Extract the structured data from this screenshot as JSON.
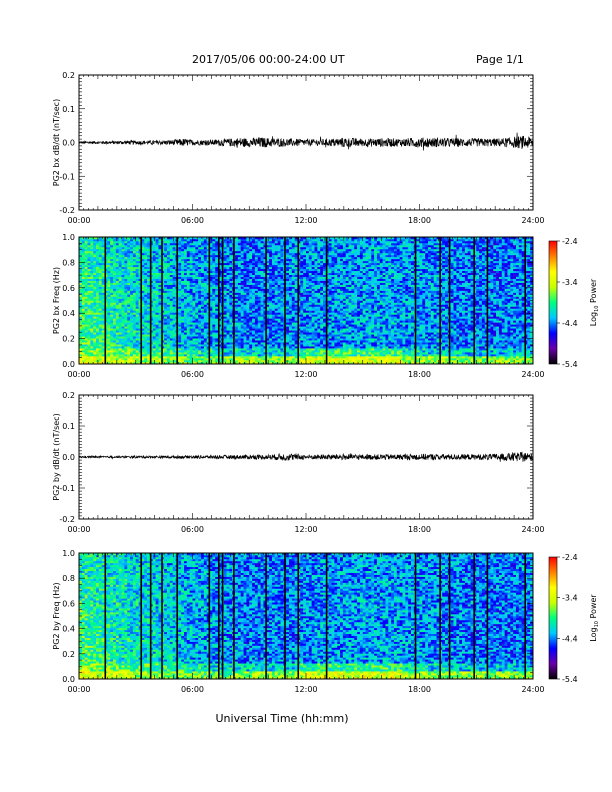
{
  "header": {
    "title": "2017/05/06  00:00-24:00 UT",
    "page": "Page 1/1"
  },
  "xlabel": "Universal Time (hh:mm)",
  "colors": {
    "trace": "#000000",
    "colormap": [
      "#000000",
      "#6a00a8",
      "#0000ff",
      "#00c8ff",
      "#00ff7f",
      "#c8ff00",
      "#ffff00",
      "#ff8000",
      "#ff0000"
    ]
  },
  "chart_data": [
    {
      "type": "line",
      "ylabel": "PG2 bx dB/dt (nT/sec)",
      "xlim": [
        0,
        24
      ],
      "ylim": [
        -0.2,
        0.2
      ],
      "xticks": [
        "00:00",
        "06:00",
        "12:00",
        "18:00",
        "24:00"
      ],
      "yticks": [
        "0.2",
        "0.1",
        "0.0",
        "-0.1",
        "-0.2"
      ],
      "yticklabels_shown": [
        "0.2",
        "0.1",
        "0.0",
        "-0.1",
        "-0.2"
      ],
      "envelope": [
        [
          0,
          0.004
        ],
        [
          1,
          0.004
        ],
        [
          2,
          0.005
        ],
        [
          3,
          0.006
        ],
        [
          4,
          0.006
        ],
        [
          5,
          0.008
        ],
        [
          5.5,
          0.012
        ],
        [
          6,
          0.008
        ],
        [
          7,
          0.008
        ],
        [
          8,
          0.012
        ],
        [
          8.5,
          0.015
        ],
        [
          9,
          0.012
        ],
        [
          9.5,
          0.016
        ],
        [
          10,
          0.014
        ],
        [
          11,
          0.012
        ],
        [
          12,
          0.01
        ],
        [
          13,
          0.01
        ],
        [
          14,
          0.015
        ],
        [
          15,
          0.012
        ],
        [
          16,
          0.013
        ],
        [
          17,
          0.012
        ],
        [
          18,
          0.015
        ],
        [
          19,
          0.014
        ],
        [
          20,
          0.013
        ],
        [
          21,
          0.012
        ],
        [
          22,
          0.012
        ],
        [
          23,
          0.016
        ],
        [
          23.5,
          0.02
        ],
        [
          24,
          0.015
        ]
      ]
    },
    {
      "type": "heatmap",
      "ylabel": "PG2 bx Freq (Hz)",
      "xlim": [
        0,
        24
      ],
      "ylim": [
        0.0,
        1.0
      ],
      "xticks": [
        "00:00",
        "06:00",
        "12:00",
        "18:00",
        "24:00"
      ],
      "yticks": [
        "1.0",
        "0.8",
        "0.6",
        "0.4",
        "0.2",
        "0.0"
      ],
      "colorbar": {
        "label": "Log10 Power",
        "label_base": "Log",
        "label_sub": "10",
        "label_rest": " Power",
        "ticks": [
          "-2.4",
          "-3.4",
          "-4.4",
          "-5.4"
        ],
        "range": [
          -5.4,
          -2.4
        ]
      },
      "gaps_hours": [
        1.4,
        3.3,
        3.8,
        4.4,
        5.2,
        6.9,
        7.4,
        7.6,
        8.2,
        9.9,
        10.9,
        11.6,
        13.1,
        17.8,
        19.1,
        19.6,
        20.9,
        21.6,
        23.6
      ]
    },
    {
      "type": "line",
      "ylabel": "PG2 by dB/dt (nT/sec)",
      "xlim": [
        0,
        24
      ],
      "ylim": [
        -0.2,
        0.2
      ],
      "xticks": [
        "00:00",
        "06:00",
        "12:00",
        "18:00",
        "24:00"
      ],
      "yticks": [
        "0.2",
        "0.1",
        "0.0",
        "-0.1",
        "-0.2"
      ],
      "yticklabels_shown": [
        "0.2",
        "0.1",
        "0.0",
        "-0.1",
        "-0.2"
      ],
      "envelope": [
        [
          0,
          0.003
        ],
        [
          2,
          0.003
        ],
        [
          4,
          0.004
        ],
        [
          6,
          0.005
        ],
        [
          8,
          0.006
        ],
        [
          10,
          0.008
        ],
        [
          11,
          0.012
        ],
        [
          12,
          0.008
        ],
        [
          13,
          0.008
        ],
        [
          14,
          0.01
        ],
        [
          15,
          0.008
        ],
        [
          16,
          0.009
        ],
        [
          17,
          0.009
        ],
        [
          18,
          0.01
        ],
        [
          19,
          0.01
        ],
        [
          20,
          0.009
        ],
        [
          21,
          0.009
        ],
        [
          22,
          0.01
        ],
        [
          23,
          0.014
        ],
        [
          23.5,
          0.016
        ],
        [
          24,
          0.012
        ]
      ]
    },
    {
      "type": "heatmap",
      "ylabel": "PG2 by Freq (Hz)",
      "xlim": [
        0,
        24
      ],
      "ylim": [
        0.0,
        1.0
      ],
      "xticks": [
        "00:00",
        "06:00",
        "12:00",
        "18:00",
        "24:00"
      ],
      "yticks": [
        "1.0",
        "0.8",
        "0.6",
        "0.4",
        "0.2",
        "0.0"
      ],
      "colorbar": {
        "label": "Log10 Power",
        "label_base": "Log",
        "label_sub": "10",
        "label_rest": " Power",
        "ticks": [
          "-2.4",
          "-3.4",
          "-4.4",
          "-5.4"
        ],
        "range": [
          -5.4,
          -2.4
        ]
      },
      "gaps_hours": [
        1.4,
        3.3,
        3.8,
        4.4,
        5.2,
        6.9,
        7.4,
        7.6,
        8.2,
        9.9,
        10.9,
        11.6,
        13.1,
        17.8,
        19.1,
        19.6,
        20.9,
        21.6,
        23.6
      ]
    }
  ]
}
